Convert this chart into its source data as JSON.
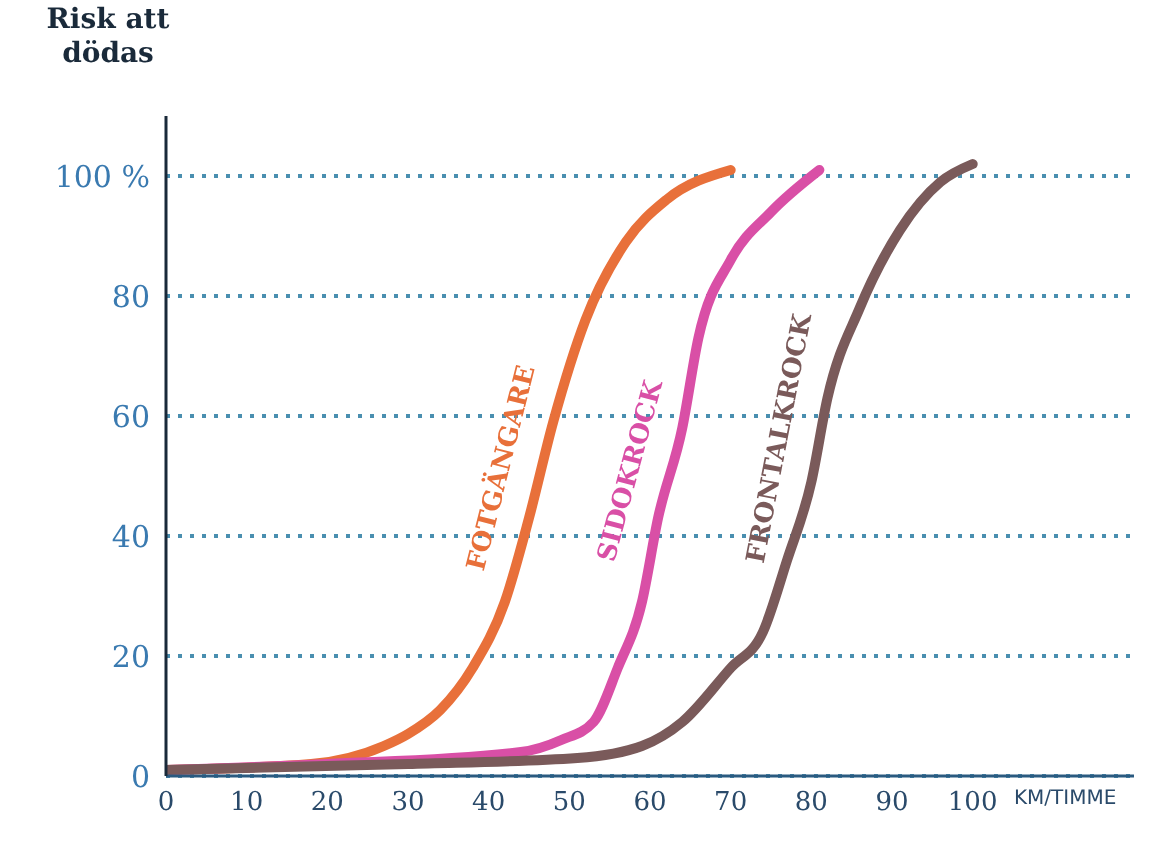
{
  "chart_data": {
    "type": "line",
    "ylabel": "Risk att dödas",
    "xlabel": "KM/TIMME",
    "xlim": [
      0,
      120
    ],
    "xticks": [
      0,
      10,
      20,
      30,
      40,
      50,
      60,
      70,
      80,
      90,
      100
    ],
    "ylim": [
      0,
      110
    ],
    "yticks": [
      0,
      20,
      40,
      60,
      80,
      {
        "value": 100,
        "label": "100 %"
      }
    ],
    "grid": "y",
    "series": [
      {
        "name": "FOTGÄNGARE",
        "color": "#e8703a",
        "x": [
          0,
          18,
          27,
          30,
          34,
          38,
          42,
          45,
          48,
          52,
          57,
          62,
          70
        ],
        "values": [
          1,
          2,
          5,
          7,
          11,
          18,
          29,
          43,
          59,
          76,
          89,
          96,
          101
        ]
      },
      {
        "name": "SIDOKROCK",
        "color": "#d94fa6",
        "x": [
          0,
          20,
          44,
          49,
          53,
          56,
          59,
          61,
          64,
          66,
          70,
          75,
          81
        ],
        "values": [
          1,
          2,
          4,
          6,
          9,
          18,
          29,
          43,
          58,
          73,
          86,
          94,
          101
        ]
      },
      {
        "name": "FRONTALKROCK",
        "color": "#7a5a5a",
        "x": [
          0,
          30,
          51,
          59,
          64,
          70,
          74,
          77,
          80,
          82,
          86,
          91,
          96,
          100
        ],
        "values": [
          1,
          2,
          3,
          5,
          9,
          18,
          24,
          36,
          49,
          63,
          78,
          91,
          99,
          102
        ]
      }
    ]
  }
}
